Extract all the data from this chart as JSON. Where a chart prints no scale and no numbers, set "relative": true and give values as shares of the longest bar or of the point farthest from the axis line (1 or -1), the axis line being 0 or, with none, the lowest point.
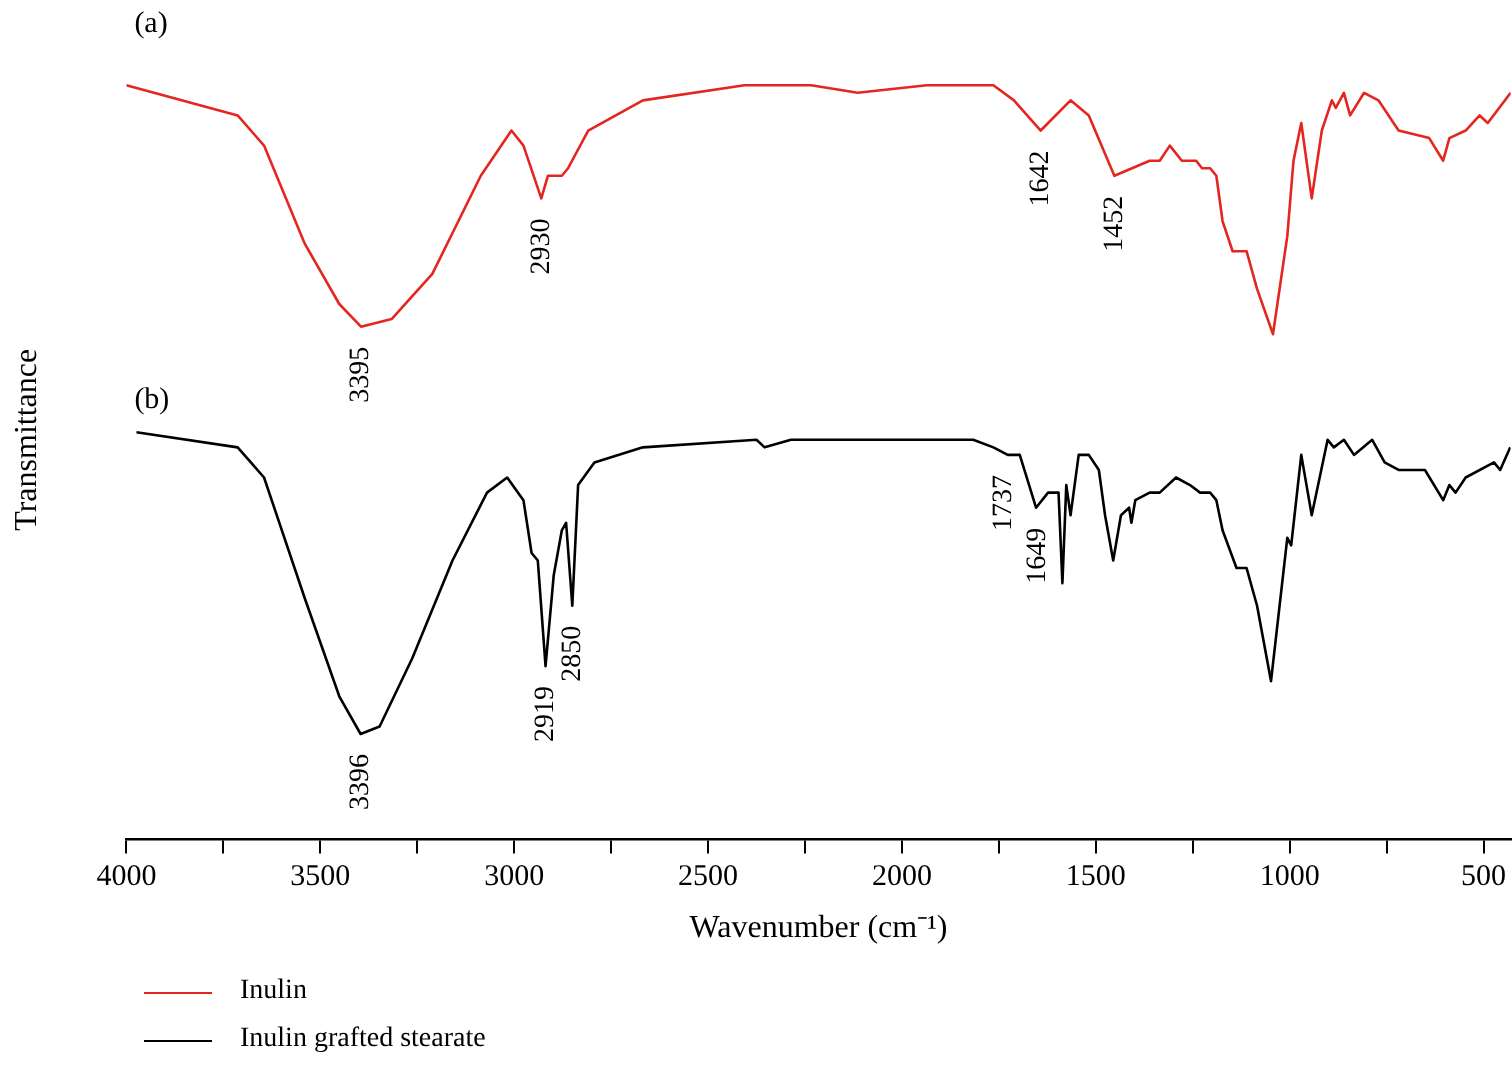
{
  "chart_data": {
    "type": "line",
    "relative": true,
    "xlabel": "Wavenumber (cm⁻¹)",
    "ylabel": "Transmittance",
    "xlim": [
      4000,
      430
    ],
    "xticks": [
      4000,
      {
        "value": 3750,
        "label": null
      },
      3500,
      {
        "value": 3250,
        "label": null
      },
      3000,
      {
        "value": 2750,
        "label": null
      },
      2500,
      {
        "value": 2250,
        "label": null
      },
      2000,
      {
        "value": 1750,
        "label": null
      },
      1500,
      {
        "value": 1250,
        "label": null
      },
      1000,
      {
        "value": 750,
        "label": null
      },
      500
    ],
    "legend": "bottom",
    "marker": "none",
    "line_style": "solid",
    "grid": false,
    "tick_labels": "x",
    "series": [
      {
        "name": "Inulin",
        "color": "#e3261f",
        "x": [
          4000,
          3713,
          3645,
          3540,
          3451,
          3395,
          3316,
          3211,
          3086,
          3007,
          2976,
          2930,
          2913,
          2877,
          2861,
          2809,
          2668,
          2406,
          2234,
          2114,
          1936,
          1764,
          1711,
          1642,
          1565,
          1518,
          1452,
          1361,
          1335,
          1309,
          1278,
          1241,
          1226,
          1205,
          1189,
          1173,
          1147,
          1111,
          1084,
          1043,
          1006,
          990,
          970,
          943,
          917,
          891,
          881,
          860,
          844,
          808,
          771,
          719,
          640,
          604,
          588,
          546,
          510,
          489,
          430
        ],
        "values": [
          1.0,
          0.96,
          0.92,
          0.79,
          0.71,
          0.68,
          0.69,
          0.75,
          0.88,
          0.94,
          0.92,
          0.85,
          0.88,
          0.88,
          0.89,
          0.94,
          0.98,
          1.0,
          1.0,
          0.99,
          1.0,
          1.0,
          0.98,
          0.94,
          0.98,
          0.96,
          0.88,
          0.9,
          0.9,
          0.92,
          0.9,
          0.9,
          0.89,
          0.89,
          0.88,
          0.82,
          0.78,
          0.78,
          0.73,
          0.67,
          0.8,
          0.9,
          0.95,
          0.85,
          0.94,
          0.98,
          0.97,
          0.99,
          0.96,
          0.99,
          0.98,
          0.94,
          0.93,
          0.9,
          0.93,
          0.94,
          0.96,
          0.95,
          0.99
        ]
      },
      {
        "name": "Inulin grafted stearate",
        "color": "#000000",
        "x": [
          3974,
          3713,
          3645,
          3540,
          3451,
          3396,
          3347,
          3263,
          3159,
          3070,
          3018,
          2976,
          2955,
          2939,
          2919,
          2898,
          2877,
          2866,
          2850,
          2835,
          2793,
          2668,
          2375,
          2354,
          2286,
          1816,
          1764,
          1727,
          1696,
          1654,
          1623,
          1596,
          1586,
          1576,
          1565,
          1544,
          1518,
          1492,
          1476,
          1455,
          1435,
          1414,
          1408,
          1398,
          1361,
          1335,
          1293,
          1257,
          1231,
          1205,
          1189,
          1173,
          1137,
          1111,
          1084,
          1048,
          1006,
          996,
          970,
          943,
          902,
          886,
          860,
          834,
          787,
          755,
          719,
          651,
          604,
          588,
          572,
          546,
          473,
          457,
          431
        ],
        "values": [
          0.54,
          0.52,
          0.48,
          0.32,
          0.19,
          0.14,
          0.15,
          0.24,
          0.37,
          0.46,
          0.48,
          0.45,
          0.38,
          0.37,
          0.23,
          0.35,
          0.41,
          0.42,
          0.31,
          0.47,
          0.5,
          0.52,
          0.53,
          0.52,
          0.53,
          0.53,
          0.52,
          0.51,
          0.51,
          0.44,
          0.46,
          0.46,
          0.34,
          0.47,
          0.43,
          0.51,
          0.51,
          0.49,
          0.43,
          0.37,
          0.43,
          0.44,
          0.42,
          0.45,
          0.46,
          0.46,
          0.48,
          0.47,
          0.46,
          0.46,
          0.45,
          0.41,
          0.36,
          0.36,
          0.31,
          0.21,
          0.4,
          0.39,
          0.51,
          0.43,
          0.53,
          0.52,
          0.53,
          0.51,
          0.53,
          0.5,
          0.49,
          0.49,
          0.45,
          0.47,
          0.46,
          0.48,
          0.5,
          0.49,
          0.52
        ]
      }
    ],
    "annotations": [
      "(a)",
      "(b)",
      {
        "text": "3395",
        "x": 3395,
        "y": 0.68
      },
      {
        "text": "2930",
        "x": 2930,
        "y": 0.85
      },
      {
        "text": "1642",
        "x": 1642,
        "y": 0.94
      },
      {
        "text": "1452",
        "x": 1452,
        "y": 0.88
      },
      {
        "text": "3396",
        "x": 3396,
        "y": 0.14
      },
      {
        "text": "2919",
        "x": 2919,
        "y": 0.23
      },
      {
        "text": "2850",
        "x": 2850,
        "y": 0.31
      },
      {
        "text": "1737",
        "x": 1737,
        "y": 0.51
      },
      {
        "text": "1649",
        "x": 1649,
        "y": 0.44
      }
    ]
  }
}
